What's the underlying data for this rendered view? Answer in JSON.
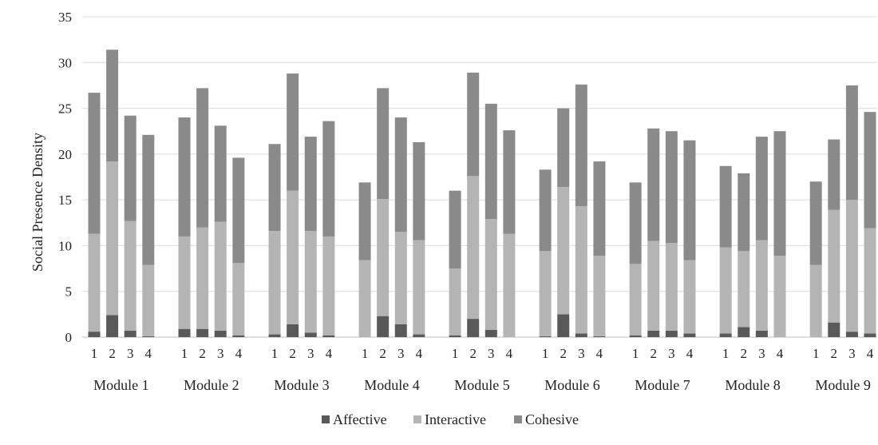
{
  "chart_data": {
    "type": "bar",
    "stacked": true,
    "ylabel": "Social Presence Density",
    "xlabel": "",
    "ylim": [
      0,
      35
    ],
    "yticks": [
      0,
      5,
      10,
      15,
      20,
      25,
      30,
      35
    ],
    "grid": true,
    "legend_position": "bottom",
    "groups": [
      "Module 1",
      "Module 2",
      "Module 3",
      "Module 4",
      "Module 5",
      "Module 6",
      "Module 7",
      "Module 8",
      "Module 9"
    ],
    "sub_categories": [
      "1",
      "2",
      "3",
      "4"
    ],
    "series": [
      {
        "name": "Affective",
        "color": "#595959",
        "values": [
          0.6,
          2.4,
          0.7,
          0.1,
          0.9,
          0.9,
          0.7,
          0.2,
          0.3,
          1.4,
          0.5,
          0.2,
          0.0,
          2.3,
          1.4,
          0.3,
          0.2,
          2.0,
          0.8,
          0.0,
          0.1,
          2.5,
          0.4,
          0.1,
          0.2,
          0.7,
          0.7,
          0.4,
          0.4,
          1.1,
          0.7,
          0.0,
          0.0,
          1.6,
          0.6,
          0.4
        ]
      },
      {
        "name": "Interactive",
        "color": "#b4b4b4",
        "values": [
          10.7,
          16.8,
          12.0,
          7.8,
          10.1,
          11.1,
          11.9,
          7.9,
          11.3,
          14.6,
          11.1,
          10.8,
          8.4,
          12.8,
          10.1,
          10.3,
          7.3,
          15.6,
          12.1,
          11.3,
          9.3,
          13.9,
          13.9,
          8.8,
          7.8,
          9.8,
          9.6,
          8.0,
          9.4,
          8.3,
          9.9,
          8.9,
          7.9,
          12.3,
          14.4,
          11.5
        ]
      },
      {
        "name": "Cohesive",
        "color": "#8a8a8a",
        "values": [
          15.4,
          12.2,
          11.5,
          14.2,
          13.0,
          15.2,
          10.5,
          11.5,
          9.5,
          12.8,
          10.3,
          12.6,
          8.5,
          12.1,
          12.5,
          10.7,
          8.5,
          11.3,
          12.6,
          11.3,
          8.9,
          8.6,
          13.3,
          10.3,
          8.9,
          12.3,
          12.2,
          13.1,
          8.9,
          8.5,
          11.3,
          13.6,
          9.1,
          7.7,
          12.5,
          12.7
        ]
      }
    ]
  }
}
